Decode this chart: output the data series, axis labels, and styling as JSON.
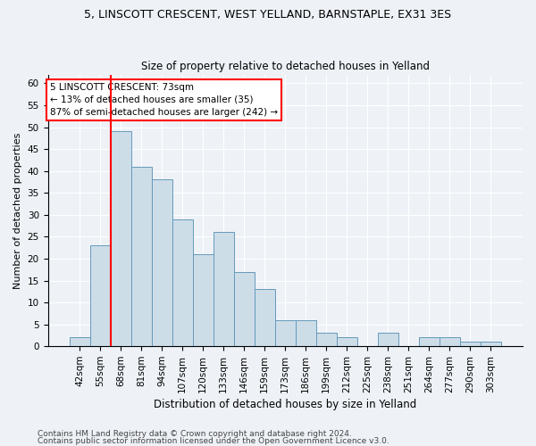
{
  "title": "5, LINSCOTT CRESCENT, WEST YELLAND, BARNSTAPLE, EX31 3ES",
  "subtitle": "Size of property relative to detached houses in Yelland",
  "xlabel": "Distribution of detached houses by size in Yelland",
  "ylabel": "Number of detached properties",
  "categories": [
    "42sqm",
    "55sqm",
    "68sqm",
    "81sqm",
    "94sqm",
    "107sqm",
    "120sqm",
    "133sqm",
    "146sqm",
    "159sqm",
    "173sqm",
    "186sqm",
    "199sqm",
    "212sqm",
    "225sqm",
    "238sqm",
    "251sqm",
    "264sqm",
    "277sqm",
    "290sqm",
    "303sqm"
  ],
  "values": [
    2,
    23,
    49,
    41,
    38,
    29,
    21,
    26,
    17,
    13,
    6,
    6,
    3,
    2,
    0,
    3,
    0,
    2,
    2,
    1,
    1
  ],
  "bar_color": "#ccdde8",
  "bar_edge_color": "#6699bb",
  "red_line_index": 1.5,
  "annotation_line1": "5 LINSCOTT CRESCENT: 73sqm",
  "annotation_line2": "← 13% of detached houses are smaller (35)",
  "annotation_line3": "87% of semi-detached houses are larger (242) →",
  "annotation_box_color": "white",
  "annotation_box_edge": "red",
  "ylim": [
    0,
    62
  ],
  "yticks": [
    0,
    5,
    10,
    15,
    20,
    25,
    30,
    35,
    40,
    45,
    50,
    55,
    60
  ],
  "footer1": "Contains HM Land Registry data © Crown copyright and database right 2024.",
  "footer2": "Contains public sector information licensed under the Open Government Licence v3.0.",
  "bg_color": "#eef2f7",
  "plot_bg_color": "#eef2f7",
  "grid_color": "#ffffff",
  "title_fontsize": 9,
  "subtitle_fontsize": 8.5,
  "axis_label_fontsize": 8,
  "tick_fontsize": 7.5,
  "annotation_fontsize": 7.5,
  "footer_fontsize": 6.5
}
